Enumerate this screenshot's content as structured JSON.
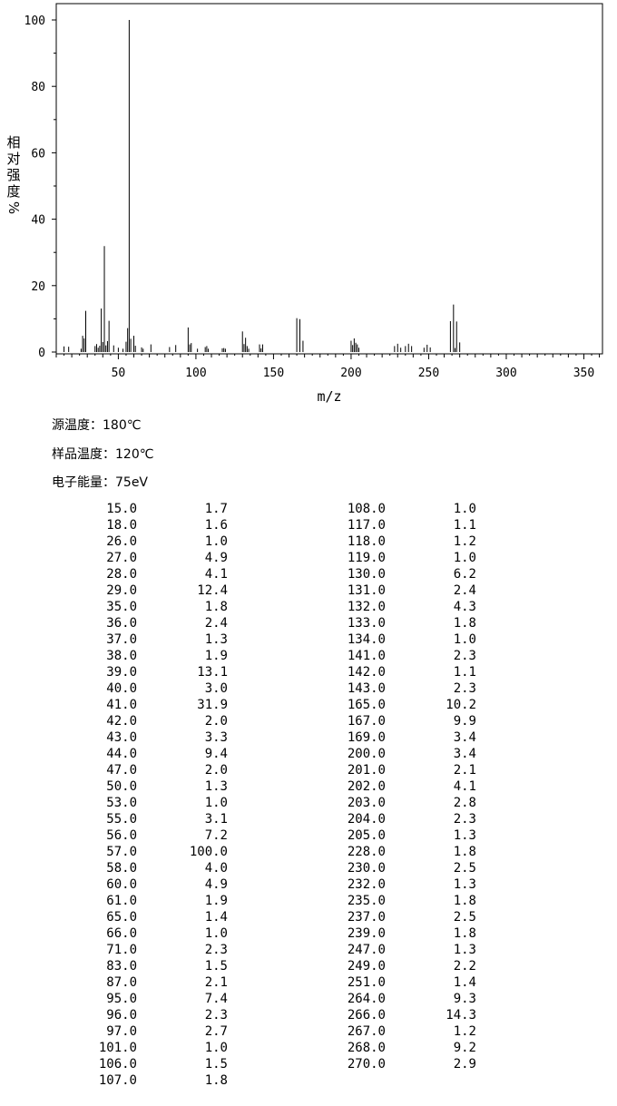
{
  "chart_data": {
    "type": "bar",
    "xlabel": "m/z",
    "ylabel_chars": [
      "相",
      "对",
      "强",
      "度"
    ],
    "ylabel_unit": "%",
    "xlim": [
      10,
      362
    ],
    "ylim": [
      0,
      104
    ],
    "xticks": [
      50,
      100,
      150,
      200,
      250,
      300,
      350
    ],
    "yticks": [
      0,
      20,
      40,
      60,
      80,
      100
    ],
    "grid": false,
    "peaks": [
      [
        15,
        1.7
      ],
      [
        18,
        1.6
      ],
      [
        26,
        1.0
      ],
      [
        27,
        4.9
      ],
      [
        28,
        4.1
      ],
      [
        29,
        12.4
      ],
      [
        35,
        1.8
      ],
      [
        36,
        2.4
      ],
      [
        37,
        1.3
      ],
      [
        38,
        1.9
      ],
      [
        39,
        13.1
      ],
      [
        40,
        3.0
      ],
      [
        41,
        31.9
      ],
      [
        42,
        2.0
      ],
      [
        43,
        3.3
      ],
      [
        44,
        9.4
      ],
      [
        47,
        2.0
      ],
      [
        50,
        1.3
      ],
      [
        53,
        1.0
      ],
      [
        55,
        3.1
      ],
      [
        56,
        7.2
      ],
      [
        57,
        100.0
      ],
      [
        58,
        4.0
      ],
      [
        60,
        4.9
      ],
      [
        61,
        1.9
      ],
      [
        65,
        1.4
      ],
      [
        66,
        1.0
      ],
      [
        71,
        2.3
      ],
      [
        83,
        1.5
      ],
      [
        87,
        2.1
      ],
      [
        95,
        7.4
      ],
      [
        96,
        2.3
      ],
      [
        97,
        2.7
      ],
      [
        101,
        1.0
      ],
      [
        106,
        1.5
      ],
      [
        107,
        1.8
      ],
      [
        108,
        1.0
      ],
      [
        117,
        1.1
      ],
      [
        118,
        1.2
      ],
      [
        119,
        1.0
      ],
      [
        130,
        6.2
      ],
      [
        131,
        2.4
      ],
      [
        132,
        4.3
      ],
      [
        133,
        1.8
      ],
      [
        134,
        1.0
      ],
      [
        141,
        2.3
      ],
      [
        142,
        1.1
      ],
      [
        143,
        2.3
      ],
      [
        165,
        10.2
      ],
      [
        167,
        9.9
      ],
      [
        169,
        3.4
      ],
      [
        200,
        3.4
      ],
      [
        201,
        2.1
      ],
      [
        202,
        4.1
      ],
      [
        203,
        2.8
      ],
      [
        204,
        2.3
      ],
      [
        205,
        1.3
      ],
      [
        228,
        1.8
      ],
      [
        230,
        2.5
      ],
      [
        232,
        1.3
      ],
      [
        235,
        1.8
      ],
      [
        237,
        2.5
      ],
      [
        239,
        1.8
      ],
      [
        247,
        1.3
      ],
      [
        249,
        2.2
      ],
      [
        251,
        1.4
      ],
      [
        264,
        9.3
      ],
      [
        266,
        14.3
      ],
      [
        267,
        1.2
      ],
      [
        268,
        9.2
      ],
      [
        270,
        2.9
      ]
    ]
  },
  "conditions": {
    "source_temp": "源温度：180℃",
    "sample_temp": "样品温度：120℃",
    "electron_energy": "电子能量：75eV"
  },
  "table": {
    "left": [
      [
        "15.0",
        "1.7"
      ],
      [
        "18.0",
        "1.6"
      ],
      [
        "26.0",
        "1.0"
      ],
      [
        "27.0",
        "4.9"
      ],
      [
        "28.0",
        "4.1"
      ],
      [
        "29.0",
        "12.4"
      ],
      [
        "35.0",
        "1.8"
      ],
      [
        "36.0",
        "2.4"
      ],
      [
        "37.0",
        "1.3"
      ],
      [
        "38.0",
        "1.9"
      ],
      [
        "39.0",
        "13.1"
      ],
      [
        "40.0",
        "3.0"
      ],
      [
        "41.0",
        "31.9"
      ],
      [
        "42.0",
        "2.0"
      ],
      [
        "43.0",
        "3.3"
      ],
      [
        "44.0",
        "9.4"
      ],
      [
        "47.0",
        "2.0"
      ],
      [
        "50.0",
        "1.3"
      ],
      [
        "53.0",
        "1.0"
      ],
      [
        "55.0",
        "3.1"
      ],
      [
        "56.0",
        "7.2"
      ],
      [
        "57.0",
        "100.0"
      ],
      [
        "58.0",
        "4.0"
      ],
      [
        "60.0",
        "4.9"
      ],
      [
        "61.0",
        "1.9"
      ],
      [
        "65.0",
        "1.4"
      ],
      [
        "66.0",
        "1.0"
      ],
      [
        "71.0",
        "2.3"
      ],
      [
        "83.0",
        "1.5"
      ],
      [
        "87.0",
        "2.1"
      ],
      [
        "95.0",
        "7.4"
      ],
      [
        "96.0",
        "2.3"
      ],
      [
        "97.0",
        "2.7"
      ],
      [
        "101.0",
        "1.0"
      ],
      [
        "106.0",
        "1.5"
      ],
      [
        "107.0",
        "1.8"
      ]
    ],
    "right": [
      [
        "108.0",
        "1.0"
      ],
      [
        "117.0",
        "1.1"
      ],
      [
        "118.0",
        "1.2"
      ],
      [
        "119.0",
        "1.0"
      ],
      [
        "130.0",
        "6.2"
      ],
      [
        "131.0",
        "2.4"
      ],
      [
        "132.0",
        "4.3"
      ],
      [
        "133.0",
        "1.8"
      ],
      [
        "134.0",
        "1.0"
      ],
      [
        "141.0",
        "2.3"
      ],
      [
        "142.0",
        "1.1"
      ],
      [
        "143.0",
        "2.3"
      ],
      [
        "165.0",
        "10.2"
      ],
      [
        "167.0",
        "9.9"
      ],
      [
        "169.0",
        "3.4"
      ],
      [
        "200.0",
        "3.4"
      ],
      [
        "201.0",
        "2.1"
      ],
      [
        "202.0",
        "4.1"
      ],
      [
        "203.0",
        "2.8"
      ],
      [
        "204.0",
        "2.3"
      ],
      [
        "205.0",
        "1.3"
      ],
      [
        "228.0",
        "1.8"
      ],
      [
        "230.0",
        "2.5"
      ],
      [
        "232.0",
        "1.3"
      ],
      [
        "235.0",
        "1.8"
      ],
      [
        "237.0",
        "2.5"
      ],
      [
        "239.0",
        "1.8"
      ],
      [
        "247.0",
        "1.3"
      ],
      [
        "249.0",
        "2.2"
      ],
      [
        "251.0",
        "1.4"
      ],
      [
        "264.0",
        "9.3"
      ],
      [
        "266.0",
        "14.3"
      ],
      [
        "267.0",
        "1.2"
      ],
      [
        "268.0",
        "9.2"
      ],
      [
        "270.0",
        "2.9"
      ]
    ]
  }
}
